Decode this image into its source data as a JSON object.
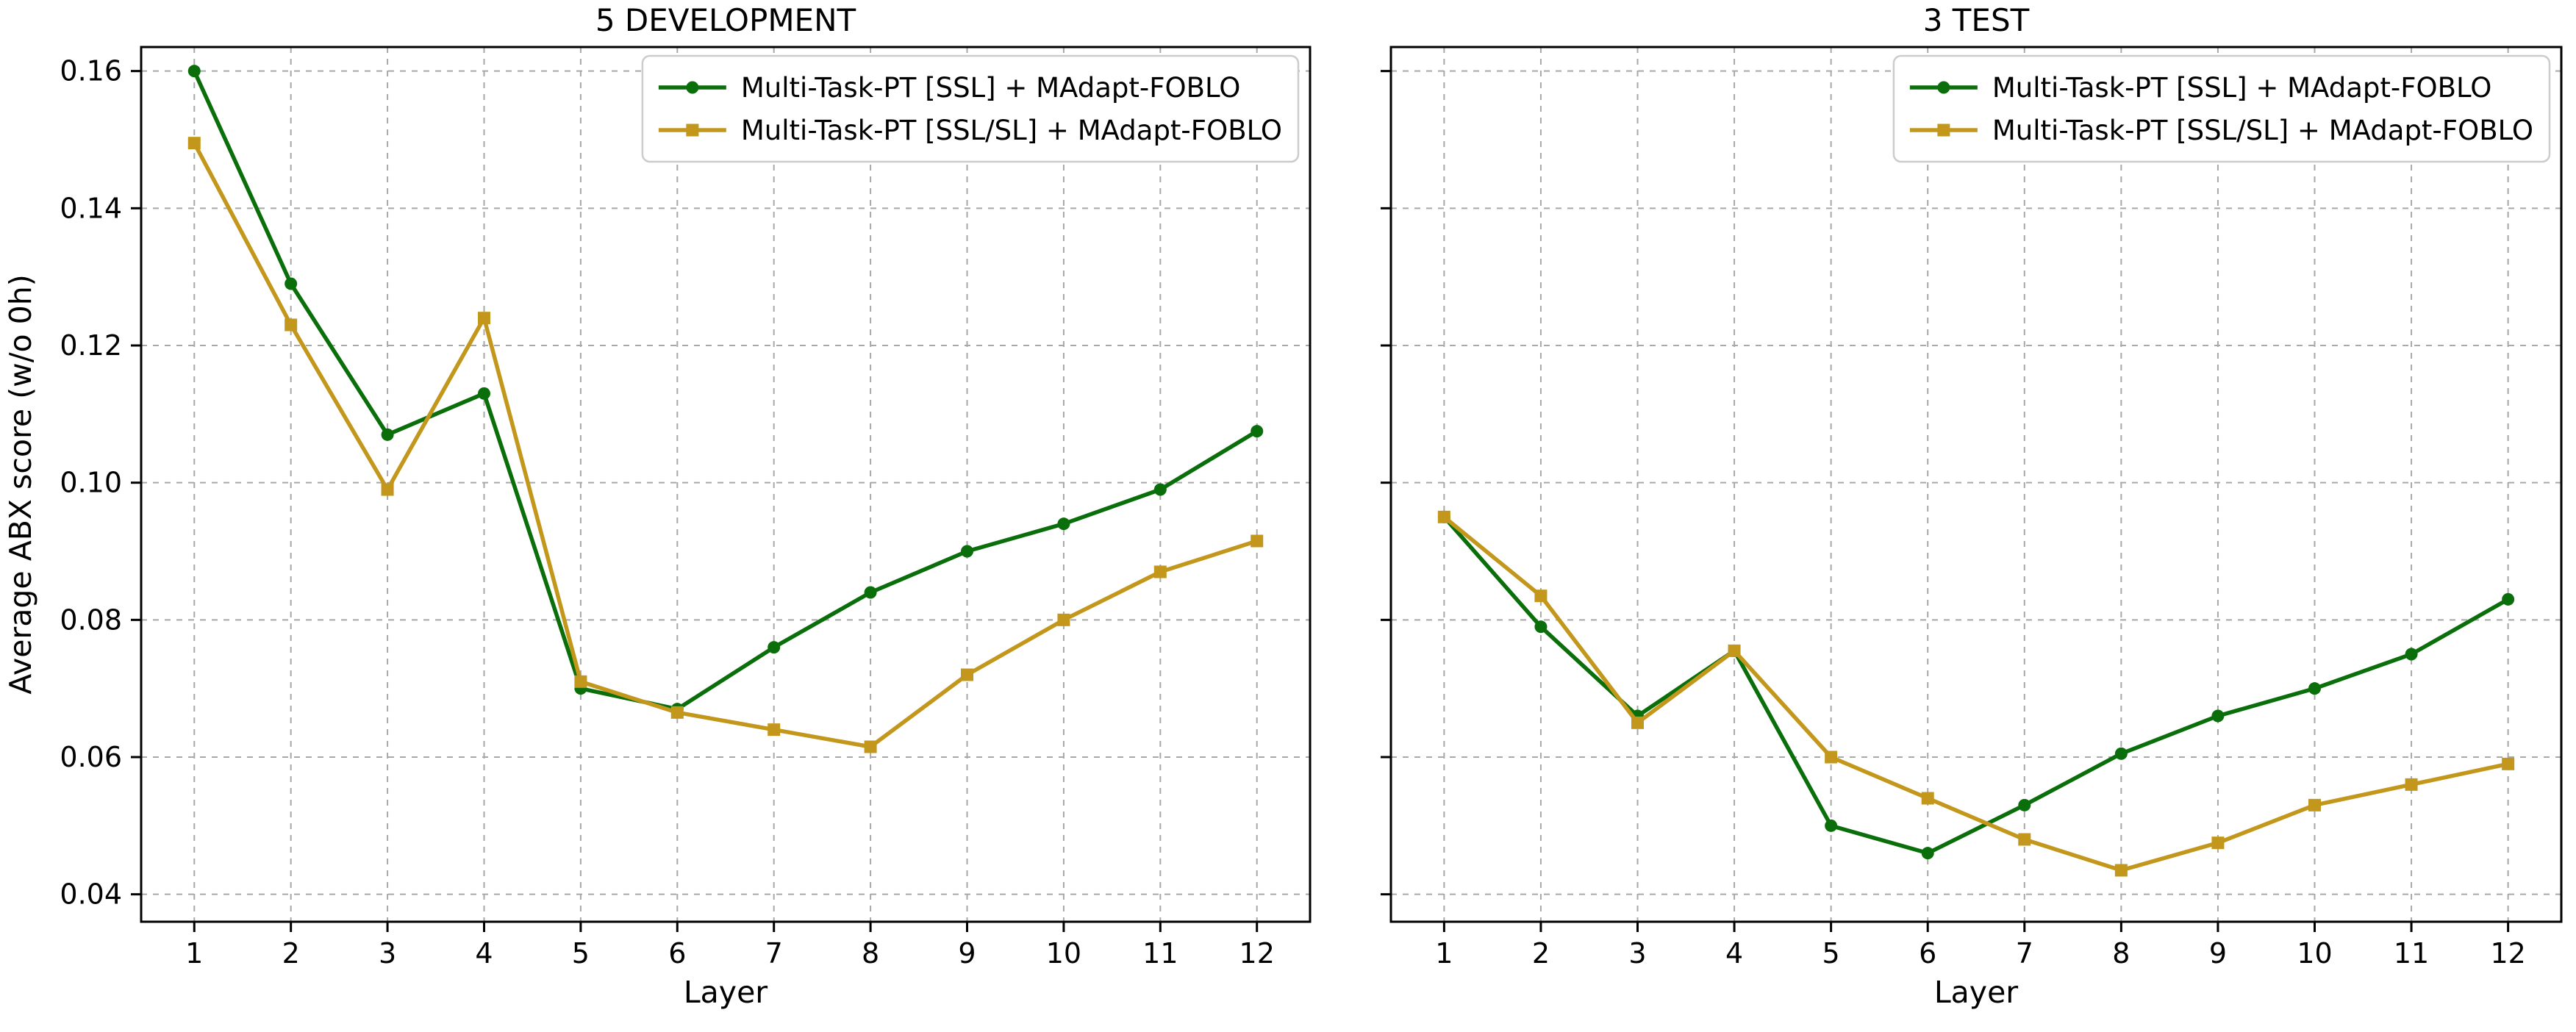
{
  "figure": {
    "ylabel": "Average ABX score (w/o 0h)",
    "xlabel": "Layer"
  },
  "chart_data": [
    {
      "type": "line",
      "title": "5 DEVELOPMENT",
      "xlabel": "Layer",
      "ylabel": "Average ABX score (w/o 0h)",
      "x": [
        1,
        2,
        3,
        4,
        5,
        6,
        7,
        8,
        9,
        10,
        11,
        12
      ],
      "xlim": [
        0.45,
        12.55
      ],
      "ylim": [
        0.036,
        0.1635
      ],
      "yticks": [
        0.04,
        0.06,
        0.08,
        0.1,
        0.12,
        0.14,
        0.16
      ],
      "ytick_labels": [
        "0.04",
        "0.06",
        "0.08",
        "0.10",
        "0.12",
        "0.14",
        "0.16"
      ],
      "grid": true,
      "legend_position": "upper right",
      "series": [
        {
          "name": "Multi-Task-PT [SSL] + MAdapt-FOBLO",
          "color": "#0a6e0a",
          "marker": "circle",
          "values": [
            0.16,
            0.129,
            0.107,
            0.113,
            0.07,
            0.067,
            0.076,
            0.084,
            0.09,
            0.094,
            0.099,
            0.1075
          ]
        },
        {
          "name": "Multi-Task-PT [SSL/SL] + MAdapt-FOBLO",
          "color": "#c2971b",
          "marker": "square",
          "values": [
            0.1495,
            0.123,
            0.099,
            0.124,
            0.071,
            0.0665,
            0.064,
            0.0615,
            0.072,
            0.08,
            0.087,
            0.0915
          ]
        }
      ]
    },
    {
      "type": "line",
      "title": "3 TEST",
      "xlabel": "Layer",
      "ylabel": "",
      "x": [
        1,
        2,
        3,
        4,
        5,
        6,
        7,
        8,
        9,
        10,
        11,
        12
      ],
      "xlim": [
        0.45,
        12.55
      ],
      "ylim": [
        0.036,
        0.1635
      ],
      "yticks": [
        0.04,
        0.06,
        0.08,
        0.1,
        0.12,
        0.14,
        0.16
      ],
      "ytick_labels": [
        "0.04",
        "0.06",
        "0.08",
        "0.10",
        "0.12",
        "0.14",
        "0.16"
      ],
      "grid": true,
      "legend_position": "upper right",
      "series": [
        {
          "name": "Multi-Task-PT [SSL] + MAdapt-FOBLO",
          "color": "#0a6e0a",
          "marker": "circle",
          "values": [
            0.095,
            0.079,
            0.066,
            0.0755,
            0.05,
            0.046,
            0.053,
            0.0605,
            0.066,
            0.07,
            0.075,
            0.083
          ]
        },
        {
          "name": "Multi-Task-PT [SSL/SL] + MAdapt-FOBLO",
          "color": "#c2971b",
          "marker": "square",
          "values": [
            0.095,
            0.0835,
            0.065,
            0.0755,
            0.06,
            0.054,
            0.048,
            0.0435,
            0.0475,
            0.053,
            0.056,
            0.059
          ]
        }
      ]
    }
  ]
}
